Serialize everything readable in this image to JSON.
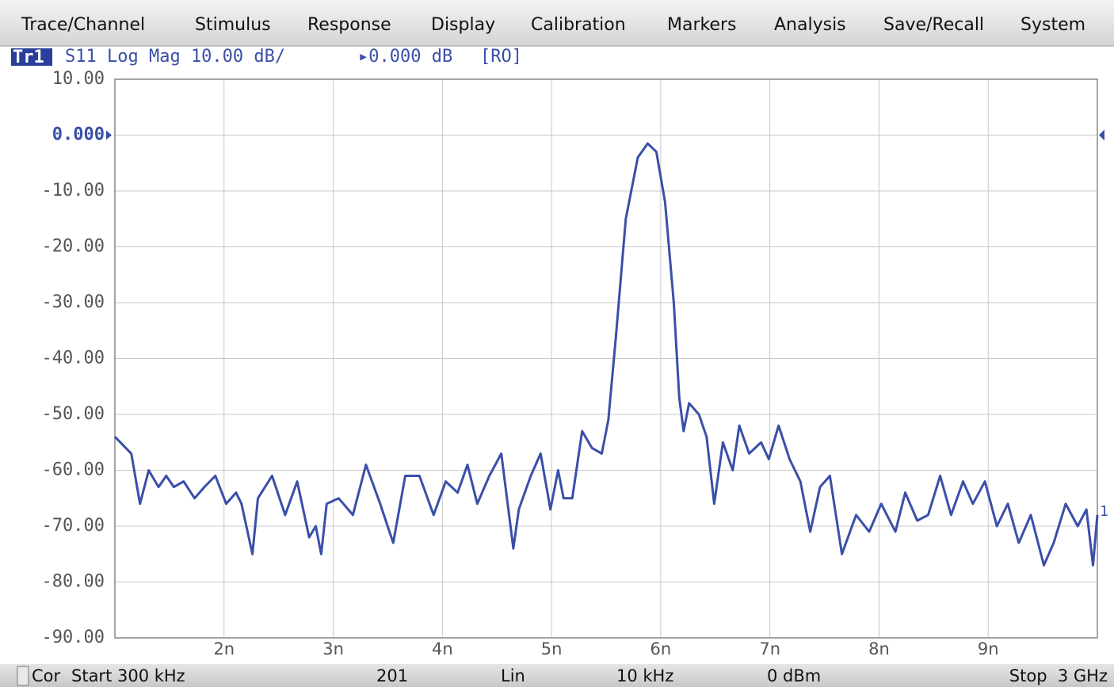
{
  "menu": [
    "Trace/Channel",
    "Stimulus",
    "Response",
    "Display",
    "Calibration",
    "Markers",
    "Analysis",
    "Save/Recall",
    "System"
  ],
  "trace_header": {
    "id": "Tr1",
    "measurement": "S11 Log Mag 10.00 dB/",
    "reference": "▸0.000 dB",
    "mode": "[RO]"
  },
  "trace_end_label": "1",
  "chart_data": {
    "type": "line",
    "color": "#3a4fa8",
    "x": [
      1.0,
      1.15,
      1.23,
      1.31,
      1.4,
      1.47,
      1.54,
      1.63,
      1.73,
      1.82,
      1.92,
      2.02,
      2.11,
      2.16,
      2.26,
      2.31,
      2.44,
      2.56,
      2.67,
      2.78,
      2.84,
      2.89,
      2.94,
      3.05,
      3.18,
      3.3,
      3.43,
      3.55,
      3.66,
      3.79,
      3.92,
      4.03,
      4.14,
      4.23,
      4.32,
      4.43,
      4.54,
      4.65,
      4.7,
      4.81,
      4.9,
      4.99,
      5.06,
      5.11,
      5.19,
      5.28,
      5.37,
      5.46,
      5.52,
      5.59,
      5.68,
      5.79,
      5.88,
      5.96,
      6.04,
      6.12,
      6.17,
      6.21,
      6.26,
      6.35,
      6.42,
      6.49,
      6.57,
      6.66,
      6.72,
      6.81,
      6.92,
      6.99,
      7.08,
      7.18,
      7.28,
      7.37,
      7.46,
      7.55,
      7.66,
      7.79,
      7.91,
      8.02,
      8.15,
      8.24,
      8.35,
      8.45,
      8.56,
      8.66,
      8.77,
      8.86,
      8.97,
      9.08,
      9.18,
      9.28,
      9.39,
      9.51,
      9.6,
      9.71,
      9.82,
      9.9,
      9.96,
      10.0
    ],
    "values": [
      -54,
      -57,
      -66,
      -60,
      -63,
      -61,
      -63,
      -62,
      -65,
      -63,
      -61,
      -66,
      -64,
      -66,
      -75,
      -65,
      -61,
      -68,
      -62,
      -72,
      -70,
      -75,
      -66,
      -65,
      -68,
      -59,
      -66,
      -73,
      -61,
      -61,
      -68,
      -62,
      -64,
      -59,
      -66,
      -61,
      -57,
      -74,
      -67,
      -61,
      -57,
      -67,
      -60,
      -65,
      -65,
      -53,
      -56,
      -57,
      -51,
      -36,
      -15,
      -4,
      -1.5,
      -3,
      -12,
      -30,
      -47,
      -53,
      -48,
      -50,
      -54,
      -66,
      -55,
      -60,
      -52,
      -57,
      -55,
      -58,
      -52,
      -58,
      -62,
      -71,
      -63,
      -61,
      -75,
      -68,
      -71,
      -66,
      -71,
      -64,
      -69,
      -68,
      -61,
      -68,
      -62,
      -66,
      -62,
      -70,
      -66,
      -73,
      -68,
      -77,
      -73,
      -66,
      -70,
      -67,
      -77,
      -68
    ],
    "xlim": [
      1,
      10
    ],
    "xticks": [
      {
        "value": 2,
        "label": "2n"
      },
      {
        "value": 3,
        "label": "3n"
      },
      {
        "value": 4,
        "label": "4n"
      },
      {
        "value": 5,
        "label": "5n"
      },
      {
        "value": 6,
        "label": "6n"
      },
      {
        "value": 7,
        "label": "7n"
      },
      {
        "value": 8,
        "label": "8n"
      },
      {
        "value": 9,
        "label": "9n"
      }
    ],
    "ylim": [
      -90,
      10
    ],
    "yticks": [
      {
        "value": 10,
        "label": "10.00"
      },
      {
        "value": 0,
        "label": "0.000"
      },
      {
        "value": -10,
        "label": "-10.00"
      },
      {
        "value": -20,
        "label": "-20.00"
      },
      {
        "value": -30,
        "label": "-30.00"
      },
      {
        "value": -40,
        "label": "-40.00"
      },
      {
        "value": -50,
        "label": "-50.00"
      },
      {
        "value": -60,
        "label": "-60.00"
      },
      {
        "value": -70,
        "label": "-70.00"
      },
      {
        "value": -80,
        "label": "-80.00"
      },
      {
        "value": -90,
        "label": "-90.00"
      }
    ],
    "reference_level": 0,
    "grid": true
  },
  "status": [
    "Cor",
    "Start 300 kHz",
    "201",
    "Lin",
    "10 kHz",
    "0 dBm",
    "Stop  3 GHz"
  ]
}
